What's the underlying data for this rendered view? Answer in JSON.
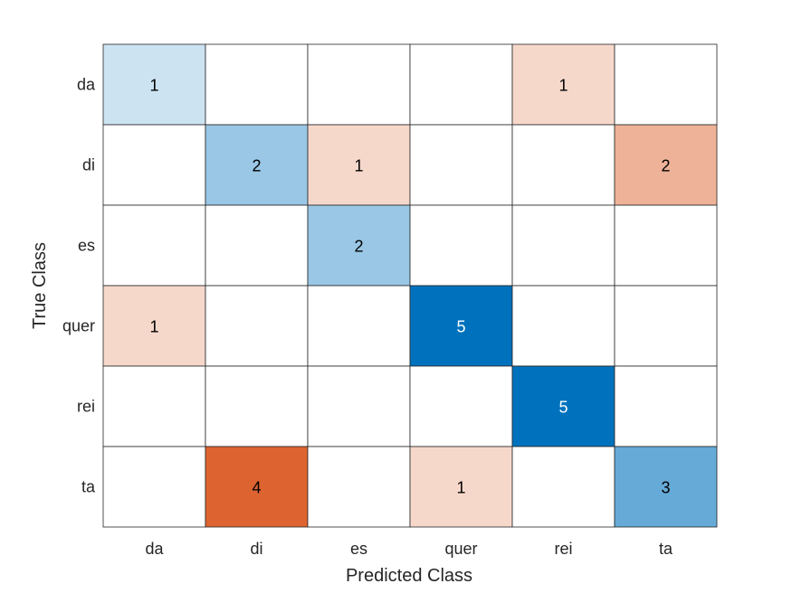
{
  "chart_data": {
    "type": "heatmap",
    "title": "",
    "xlabel": "Predicted Class",
    "ylabel": "True Class",
    "x_categories": [
      "da",
      "di",
      "es",
      "quer",
      "rei",
      "ta"
    ],
    "y_categories": [
      "da",
      "di",
      "es",
      "quer",
      "rei",
      "ta"
    ],
    "values": [
      [
        1,
        0,
        0,
        0,
        1,
        0
      ],
      [
        0,
        2,
        1,
        0,
        0,
        2
      ],
      [
        0,
        0,
        2,
        0,
        0,
        0
      ],
      [
        1,
        0,
        0,
        5,
        0,
        0
      ],
      [
        0,
        0,
        0,
        0,
        5,
        0
      ],
      [
        0,
        4,
        0,
        1,
        0,
        3
      ]
    ],
    "colors": {
      "diagonal": "#0072bd",
      "off_diagonal": "#d95319",
      "grid_line": "#262626",
      "light_text": "#ffffff",
      "dark_text": "#000000"
    }
  }
}
